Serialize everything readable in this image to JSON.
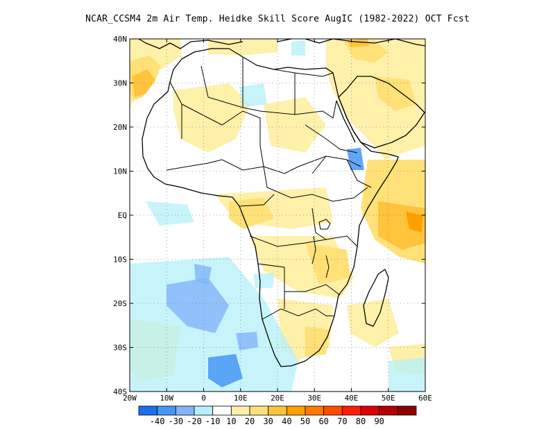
{
  "title": "NCAR_CCSM4  2m Air Temp. Heidke Skill Score AugIC (1982-2022) OCT Fcst",
  "map": {
    "lon_range": [
      -20,
      60
    ],
    "lat_range": [
      -40,
      40
    ],
    "grid": "dotted",
    "lon_ticks": [
      {
        "value": -20,
        "label": "20W"
      },
      {
        "value": -10,
        "label": "10W"
      },
      {
        "value": 0,
        "label": "0"
      },
      {
        "value": 10,
        "label": "10E"
      },
      {
        "value": 20,
        "label": "20E"
      },
      {
        "value": 30,
        "label": "30E"
      },
      {
        "value": 40,
        "label": "40E"
      },
      {
        "value": 50,
        "label": "50E"
      },
      {
        "value": 60,
        "label": "60E"
      }
    ],
    "lat_ticks": [
      {
        "value": 40,
        "label": "40N"
      },
      {
        "value": 30,
        "label": "30N"
      },
      {
        "value": 20,
        "label": "20N"
      },
      {
        "value": 10,
        "label": "10N"
      },
      {
        "value": 0,
        "label": "EQ"
      },
      {
        "value": -10,
        "label": "10S"
      },
      {
        "value": -20,
        "label": "20S"
      },
      {
        "value": -30,
        "label": "30S"
      },
      {
        "value": -40,
        "label": "40S"
      }
    ]
  },
  "colorbar": {
    "colors": [
      "#1e6eeb",
      "#4696f5",
      "#82b4fa",
      "#b4f0fa",
      "#ffffff",
      "#fff0aa",
      "#ffe178",
      "#ffc33c",
      "#ffa000",
      "#ff7800",
      "#ff4b00",
      "#ff1e00",
      "#dc0000",
      "#b40000",
      "#8c0000"
    ],
    "labels": [
      "-40",
      "-30",
      "-20",
      "-10",
      "10",
      "20",
      "30",
      "40",
      "50",
      "60",
      "70",
      "80",
      "90"
    ]
  },
  "chart_data": {
    "type": "heatmap",
    "title": "NCAR_CCSM4  2m Air Temp. Heidke Skill Score AugIC (1982-2022) OCT Fcst",
    "xlabel": "",
    "ylabel": "",
    "xlim": [
      -20,
      60
    ],
    "ylim": [
      -40,
      40
    ],
    "grid": true,
    "colorbar_position": "bottom",
    "regions": [
      {
        "lon": [
          -20,
          -14
        ],
        "lat": [
          25,
          37
        ],
        "value": 30
      },
      {
        "lon": [
          -10,
          5
        ],
        "lat": [
          32,
          40
        ],
        "value": 20
      },
      {
        "lon": [
          20,
          50
        ],
        "lat": [
          32,
          40
        ],
        "value": 15
      },
      {
        "lon": [
          -5,
          25
        ],
        "lat": [
          12,
          30
        ],
        "value": 10
      },
      {
        "lon": [
          35,
          58
        ],
        "lat": [
          10,
          32
        ],
        "value": 20
      },
      {
        "lon": [
          40,
          60
        ],
        "lat": [
          -10,
          5
        ],
        "value": 30
      },
      {
        "lon": [
          8,
          30
        ],
        "lat": [
          -5,
          5
        ],
        "value": 20
      },
      {
        "lon": [
          14,
          35
        ],
        "lat": [
          -20,
          -10
        ],
        "value": 20
      },
      {
        "lon": [
          18,
          30
        ],
        "lat": [
          -28,
          -20
        ],
        "value": 30
      },
      {
        "lon": [
          -20,
          15
        ],
        "lat": [
          -40,
          -10
        ],
        "value": -10
      },
      {
        "lon": [
          -12,
          0
        ],
        "lat": [
          -27,
          -17
        ],
        "value": -20
      },
      {
        "lon": [
          -6,
          2
        ],
        "lat": [
          -40,
          -32
        ],
        "value": -30
      },
      {
        "lon": [
          35,
          38
        ],
        "lat": [
          9,
          12
        ],
        "value": -30
      },
      {
        "lon": [
          50,
          60
        ],
        "lat": [
          -40,
          -33
        ],
        "value": -10
      }
    ]
  }
}
